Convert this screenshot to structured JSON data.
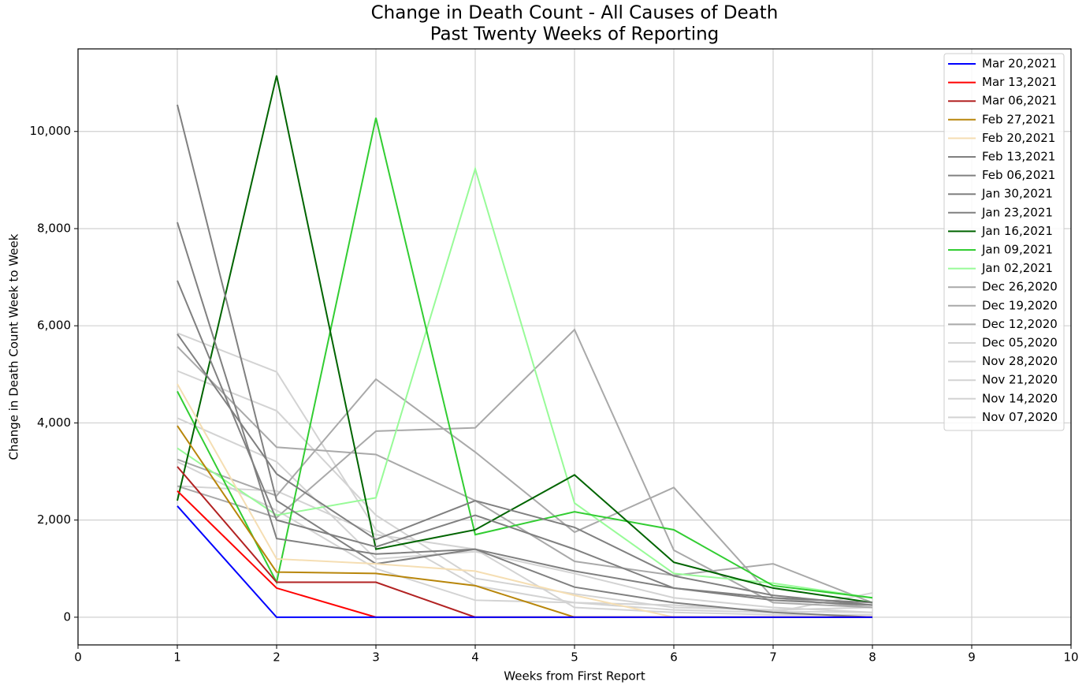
{
  "chart_data": {
    "type": "line",
    "title": "Change in Death Count - All Causes of Death",
    "subtitle": "Past Twenty Weeks of Reporting",
    "x_label": "Weeks from First Report",
    "y_label": "Change in Death Count Week to Week",
    "x": [
      1,
      2,
      3,
      4,
      5,
      6,
      7,
      8
    ],
    "xlim": [
      0,
      10
    ],
    "xticks": [
      0,
      1,
      2,
      3,
      4,
      5,
      6,
      7,
      8,
      9,
      10
    ],
    "ylim": [
      -570,
      11700
    ],
    "yticks": [
      0,
      {
        "value": 2000,
        "label": "2,000"
      },
      {
        "value": 4000,
        "label": "4,000"
      },
      {
        "value": 6000,
        "label": "6,000"
      },
      {
        "value": 8000,
        "label": "8,000"
      },
      {
        "value": 10000,
        "label": "10,000"
      }
    ],
    "grid": true,
    "legend": "upper right",
    "series": [
      {
        "name": "Mar 20,2021",
        "color": "#0000ff",
        "values": [
          2290,
          0,
          0,
          0,
          0,
          0,
          0,
          0
        ]
      },
      {
        "name": "Mar 13,2021",
        "color": "#ff0000",
        "values": [
          2600,
          600,
          0,
          0,
          0,
          0,
          0,
          0
        ]
      },
      {
        "name": "Mar 06,2021",
        "color": "#b22222",
        "values": [
          3100,
          720,
          720,
          0,
          0,
          0,
          0,
          0
        ]
      },
      {
        "name": "Feb 27,2021",
        "color": "#b8860b",
        "values": [
          3940,
          930,
          900,
          650,
          0,
          0,
          0,
          0
        ]
      },
      {
        "name": "Feb 20,2021",
        "color": "#f5deb3",
        "values": [
          4800,
          1200,
          1100,
          950,
          450,
          0,
          0,
          0
        ]
      },
      {
        "name": "Feb 13,2021",
        "color": "#808080",
        "values": [
          8130,
          1620,
          1300,
          1400,
          950,
          600,
          400,
          300
        ]
      },
      {
        "name": "Feb 06,2021",
        "color": "#808080",
        "values": [
          6930,
          2000,
          1450,
          2100,
          1400,
          600,
          350,
          250
        ]
      },
      {
        "name": "Jan 30,2021",
        "color": "#808080",
        "values": [
          5830,
          2950,
          1600,
          2400,
          1850,
          850,
          450,
          250
        ]
      },
      {
        "name": "Jan 23,2021",
        "color": "#808080",
        "values": [
          10550,
          2400,
          1100,
          1400,
          620,
          300,
          100,
          0
        ]
      },
      {
        "name": "Jan 16,2021",
        "color": "#006400",
        "values": [
          2400,
          11150,
          1400,
          1800,
          2930,
          1130,
          600,
          300
        ]
      },
      {
        "name": "Jan 09,2021",
        "color": "#32cd32",
        "values": [
          4650,
          720,
          10280,
          1700,
          2170,
          1800,
          650,
          400
        ]
      },
      {
        "name": "Jan 02,2021",
        "color": "#98fb98",
        "values": [
          3480,
          2100,
          2460,
          9230,
          2350,
          900,
          700,
          400
        ]
      },
      {
        "name": "Dec 26,2020",
        "color": "#a9a9a9",
        "values": [
          5570,
          3500,
          3350,
          2400,
          1150,
          860,
          1100,
          300
        ]
      },
      {
        "name": "Dec 19,2020",
        "color": "#a9a9a9",
        "values": [
          2700,
          2050,
          3830,
          3900,
          5920,
          1380,
          300,
          200
        ]
      },
      {
        "name": "Dec 12,2020",
        "color": "#a9a9a9",
        "values": [
          3250,
          2500,
          4900,
          3400,
          1750,
          2670,
          400,
          200
        ]
      },
      {
        "name": "Dec 05,2020",
        "color": "#d3d3d3",
        "values": [
          5850,
          5050,
          1800,
          650,
          300,
          150,
          100,
          500
        ]
      },
      {
        "name": "Nov 28,2020",
        "color": "#d3d3d3",
        "values": [
          5070,
          4250,
          2100,
          800,
          480,
          200,
          150,
          200
        ]
      },
      {
        "name": "Nov 21,2020",
        "color": "#d3d3d3",
        "values": [
          4100,
          3200,
          1200,
          1350,
          900,
          400,
          200,
          100
        ]
      },
      {
        "name": "Nov 14,2020",
        "color": "#d3d3d3",
        "values": [
          3200,
          2200,
          1000,
          350,
          300,
          250,
          120,
          100
        ]
      },
      {
        "name": "Nov 07,2020",
        "color": "#d3d3d3",
        "values": [
          2700,
          2600,
          1700,
          1400,
          200,
          100,
          50,
          50
        ]
      }
    ]
  }
}
